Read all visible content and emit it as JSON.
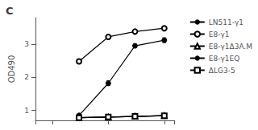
{
  "chart_data": {
    "type": "line",
    "title": "C",
    "ylabel": "OD490",
    "log": "x",
    "xlim": [
      0.05,
      15
    ],
    "ylim": [
      0.7,
      3.8
    ],
    "yticks": [
      1,
      2,
      3
    ],
    "grid": false,
    "legend": "right",
    "tick_labels": "y",
    "x": [
      0.3,
      1,
      3,
      10
    ],
    "series": [
      {
        "name": "LN511-γ1",
        "color": "black",
        "marker": "circle",
        "values": [
          0.85,
          1.82,
          2.95,
          3.12
        ],
        "yerr": [
          0.04,
          0.07,
          0.05,
          0.07
        ]
      },
      {
        "name": "E8-γ1",
        "color": "black",
        "marker": "open circle",
        "values": [
          2.48,
          3.22,
          3.38,
          3.48
        ],
        "yerr": [
          0.07,
          0.05,
          0.05,
          0.05
        ]
      },
      {
        "name": "E8-γ1Δ3A.M",
        "color": "black",
        "marker": "open triangle",
        "values": [
          0.78,
          0.8,
          0.82,
          0.84
        ],
        "yerr": [
          0.02,
          0.02,
          0.02,
          0.02
        ]
      },
      {
        "name": "E8-γ1EQ",
        "color": "black",
        "marker": "circle",
        "values": [
          0.78,
          0.8,
          0.82,
          0.84
        ],
        "yerr": [
          0.02,
          0.02,
          0.02,
          0.02
        ]
      },
      {
        "name": "ΔLG3-5",
        "color": "black",
        "marker": "open square",
        "values": [
          0.78,
          0.8,
          0.82,
          0.84
        ],
        "yerr": [
          0.02,
          0.02,
          0.02,
          0.02
        ]
      }
    ]
  }
}
